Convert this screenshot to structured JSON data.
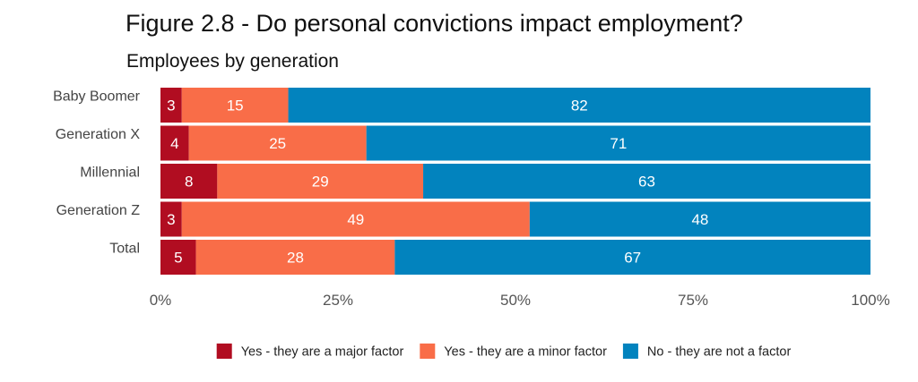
{
  "chart_data": {
    "type": "bar",
    "orientation": "horizontal",
    "stacked": true,
    "title": "Figure 2.8 - Do personal convictions impact employment?",
    "subtitle": "Employees by generation",
    "xlabel": "",
    "ylabel": "",
    "xlim": [
      0,
      100
    ],
    "x_ticks": [
      "0%",
      "25%",
      "50%",
      "75%",
      "100%"
    ],
    "grid": false,
    "legend_position": "bottom",
    "categories": [
      "Baby Boomer",
      "Generation X",
      "Millennial",
      "Generation Z",
      "Total"
    ],
    "series": [
      {
        "name": "Yes - they are a major factor",
        "color": "#b10d21",
        "values": [
          3,
          4,
          8,
          3,
          5
        ]
      },
      {
        "name": "Yes - they are a minor factor",
        "color": "#f96d48",
        "values": [
          15,
          25,
          29,
          49,
          28
        ]
      },
      {
        "name": "No - they are not a factor",
        "color": "#0283be",
        "values": [
          82,
          71,
          63,
          48,
          67
        ]
      }
    ]
  }
}
